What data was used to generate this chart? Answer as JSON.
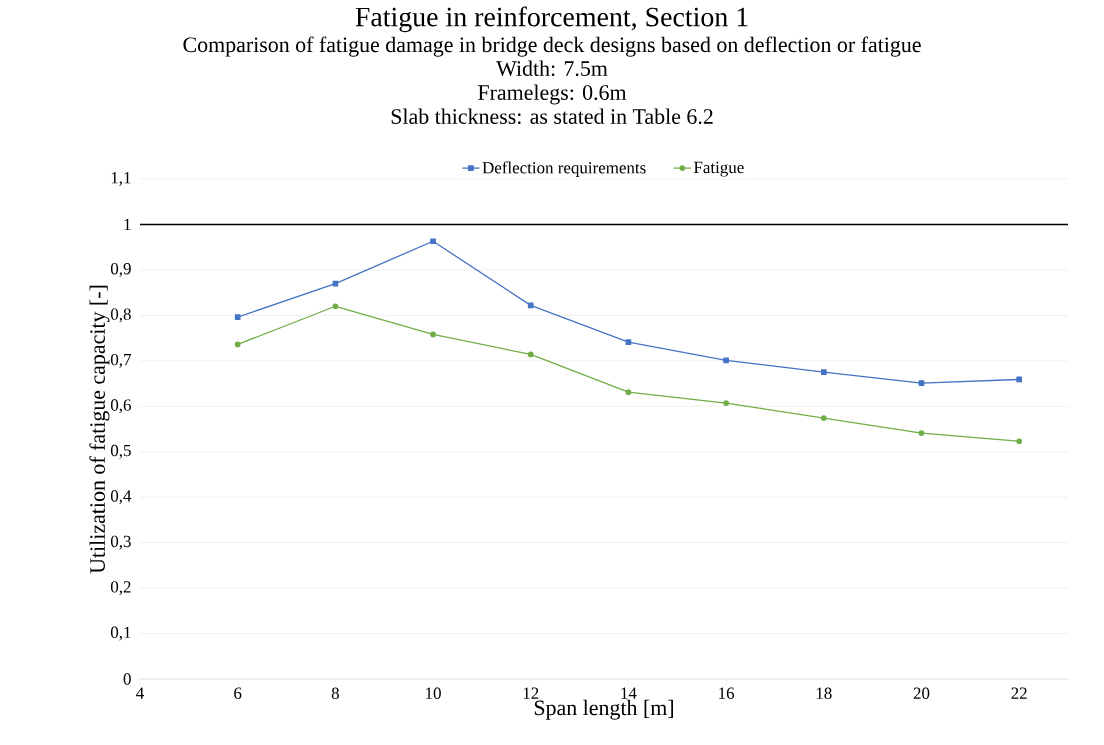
{
  "chart_data": {
    "type": "line",
    "title": "Fatigue in reinforcement, Section 1",
    "subtitle": "Comparison of fatigue damage in bridge deck designs based on deflection or fatigue",
    "annotations": [
      "Width: 7.5m",
      "Framelegs: 0.6m",
      "Slab thickness: as stated in Table 6.2"
    ],
    "xlabel": "Span length [m]",
    "ylabel": "Utilization of fatigue capacity [-]",
    "x": [
      6,
      8,
      10,
      12,
      14,
      16,
      18,
      20,
      22
    ],
    "series": [
      {
        "name": "Deflection requirements",
        "color": "#4472c4",
        "marker": "square",
        "values": [
          0.796,
          0.87,
          0.963,
          0.822,
          0.741,
          0.701,
          0.675,
          0.651,
          0.659
        ]
      },
      {
        "name": "Fatigue",
        "color": "#70ad47",
        "marker": "circle",
        "values": [
          0.736,
          0.82,
          0.758,
          0.714,
          0.631,
          0.607,
          0.574,
          0.541,
          0.523
        ]
      }
    ],
    "xlim": [
      4,
      23
    ],
    "xticks": [
      4,
      6,
      8,
      10,
      12,
      14,
      16,
      18,
      20,
      22
    ],
    "ylim": [
      0,
      1.1
    ],
    "yticks": [
      0,
      {
        "value": 0.1,
        "label": "0,1"
      },
      {
        "value": 0.2,
        "label": "0,2"
      },
      {
        "value": 0.3,
        "label": "0,3"
      },
      {
        "value": 0.4,
        "label": "0,4"
      },
      {
        "value": 0.5,
        "label": "0,5"
      },
      {
        "value": 0.6,
        "label": "0,6"
      },
      {
        "value": 0.7,
        "label": "0,7"
      },
      {
        "value": 0.8,
        "label": "0,8"
      },
      {
        "value": 0.9,
        "label": "0,9"
      },
      1,
      {
        "value": 1.1,
        "label": "1,1"
      }
    ],
    "ref_lines": [
      {
        "axis": "y",
        "value": 1,
        "color": "#000000"
      }
    ],
    "grid": "y",
    "legend": "top",
    "line_style": "solid"
  }
}
